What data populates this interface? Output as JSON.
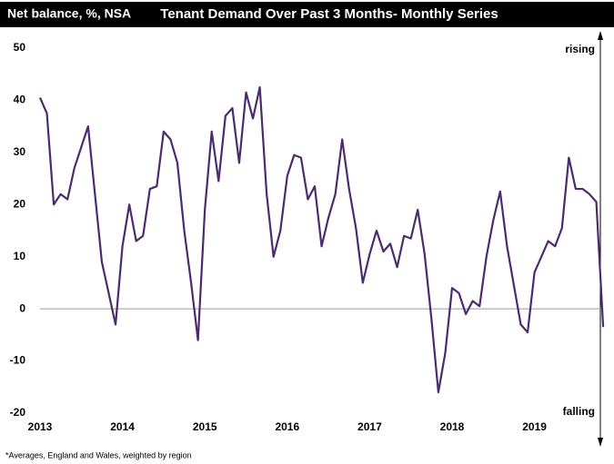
{
  "chart_data": {
    "type": "line",
    "title": "Tenant Demand Over Past 3 Months- Monthly Series",
    "y_label": "Net balance, %, NSA",
    "annotations": [
      "rising",
      "falling"
    ],
    "footnote": "*Averages, England and Wales, weighted by region",
    "categories": [
      "2013",
      null,
      null,
      null,
      null,
      null,
      null,
      null,
      null,
      null,
      null,
      null,
      "2014",
      null,
      null,
      null,
      null,
      null,
      null,
      null,
      null,
      null,
      null,
      null,
      "2015",
      null,
      null,
      null,
      null,
      null,
      null,
      null,
      null,
      null,
      null,
      null,
      "2016",
      null,
      null,
      null,
      null,
      null,
      null,
      null,
      null,
      null,
      null,
      null,
      "2017",
      null,
      null,
      null,
      null,
      null,
      null,
      null,
      null,
      null,
      null,
      null,
      "2018",
      null,
      null,
      null,
      null,
      null,
      null,
      null,
      null,
      null,
      null,
      null,
      "2019",
      null,
      null,
      null,
      null,
      null,
      null,
      null,
      null,
      null,
      null
    ],
    "series": [
      {
        "name": "Tenant demand",
        "color": "#4b2a6e",
        "values": [
          40.5,
          37.5,
          20,
          22,
          21,
          27,
          31,
          35,
          22,
          9,
          3,
          -3,
          12,
          20,
          13,
          14,
          23,
          23.5,
          34,
          32.5,
          28,
          15,
          5,
          -6,
          19,
          34,
          24.5,
          37,
          38.5,
          28,
          41.5,
          36.5,
          42.5,
          22,
          10,
          15,
          25.5,
          29.5,
          29,
          21,
          23.5,
          12,
          17.5,
          22,
          32.5,
          23,
          15.5,
          5,
          10.5,
          15,
          11,
          12.5,
          8,
          14,
          13.5,
          19,
          10.5,
          -2,
          -16,
          -8.5,
          4,
          3,
          -1,
          1.5,
          0.5,
          10,
          17,
          22.5,
          12,
          4.5,
          -3,
          -4.5,
          7,
          10,
          13,
          12,
          15.5,
          29,
          23,
          23,
          22,
          20.5,
          -3.5
        ]
      }
    ],
    "ylim": [
      -20,
      50
    ],
    "yticks": [
      -20,
      -10,
      0,
      10,
      20,
      30,
      40,
      50
    ]
  }
}
